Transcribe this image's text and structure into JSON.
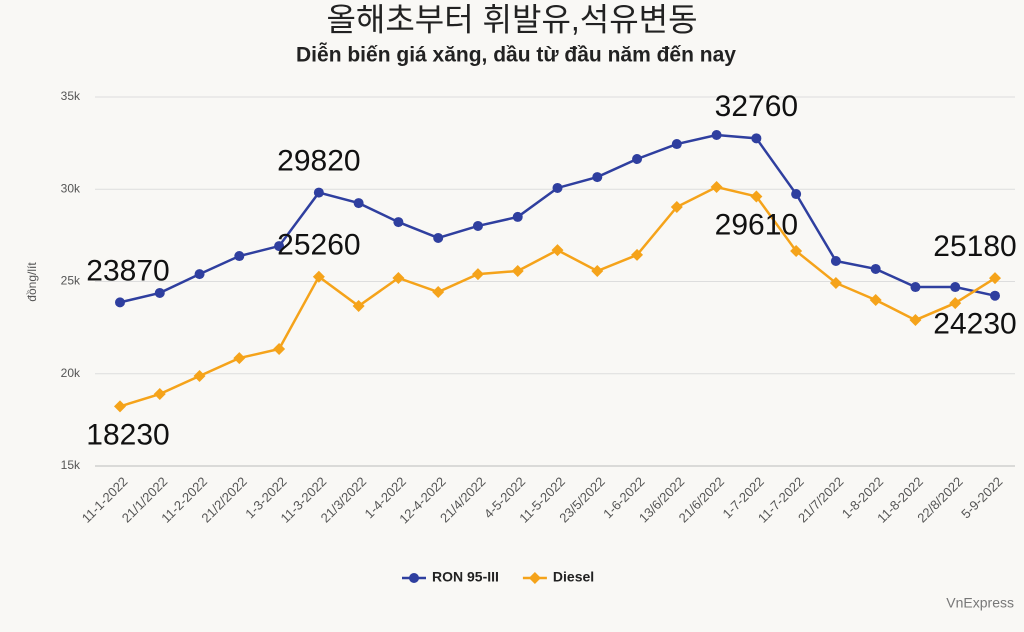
{
  "chart_data": {
    "type": "line",
    "title": "올해초부터 휘발유,석유변동",
    "subtitle": "Diễn biến giá xăng, dầu từ đầu năm đến nay",
    "y_label": "đồng/lít",
    "source": "VnExpress",
    "categories": [
      "11-1-2022",
      "21/1/2022",
      "11-2-2022",
      "21/2/2022",
      "1-3-2022",
      "11-3-2022",
      "21/3/2022",
      "1-4-2022",
      "12-4-2022",
      "21/4/2022",
      "4-5-2022",
      "11-5-2022",
      "23/5/2022",
      "1-6-2022",
      "13/6/2022",
      "21/6/2022",
      "1-7-2022",
      "11-7-2022",
      "21/7/2022",
      "1-8-2022",
      "11-8-2022",
      "22/8/2022",
      "5-9-2022"
    ],
    "series": [
      {
        "name": "RON 95-III",
        "color": "#2f3f9f",
        "marker": "circle",
        "values": [
          23870,
          24380,
          25400,
          26380,
          26920,
          29820,
          29250,
          28220,
          27360,
          28010,
          28500,
          30070,
          30660,
          31640,
          32450,
          32940,
          32760,
          29740,
          26110,
          25680,
          24700,
          24700,
          24230
        ],
        "value_labels": [
          "23870",
          null,
          null,
          null,
          null,
          "29820",
          null,
          null,
          null,
          null,
          null,
          null,
          null,
          null,
          null,
          null,
          "32760",
          null,
          null,
          null,
          null,
          null,
          "24230"
        ]
      },
      {
        "name": "Diesel",
        "color": "#f5a31a",
        "marker": "diamond",
        "values": [
          18230,
          18900,
          19880,
          20850,
          21340,
          25260,
          23670,
          25190,
          24430,
          25400,
          25570,
          26700,
          25570,
          26440,
          29040,
          30120,
          29610,
          26650,
          24920,
          24000,
          22910,
          23830,
          25180
        ],
        "value_labels": [
          "18230",
          null,
          null,
          null,
          null,
          "25260",
          null,
          null,
          null,
          null,
          null,
          null,
          null,
          null,
          null,
          null,
          "29610",
          null,
          null,
          null,
          null,
          null,
          "25180"
        ]
      }
    ],
    "ylim": [
      15000,
      35000
    ],
    "yticks": [
      {
        "value": 15000,
        "label": "15k"
      },
      {
        "value": 20000,
        "label": "20k"
      },
      {
        "value": 25000,
        "label": "25k"
      },
      {
        "value": 30000,
        "label": "30k"
      },
      {
        "value": 35000,
        "label": "35k"
      }
    ],
    "grid": true,
    "legend": "bottom"
  }
}
